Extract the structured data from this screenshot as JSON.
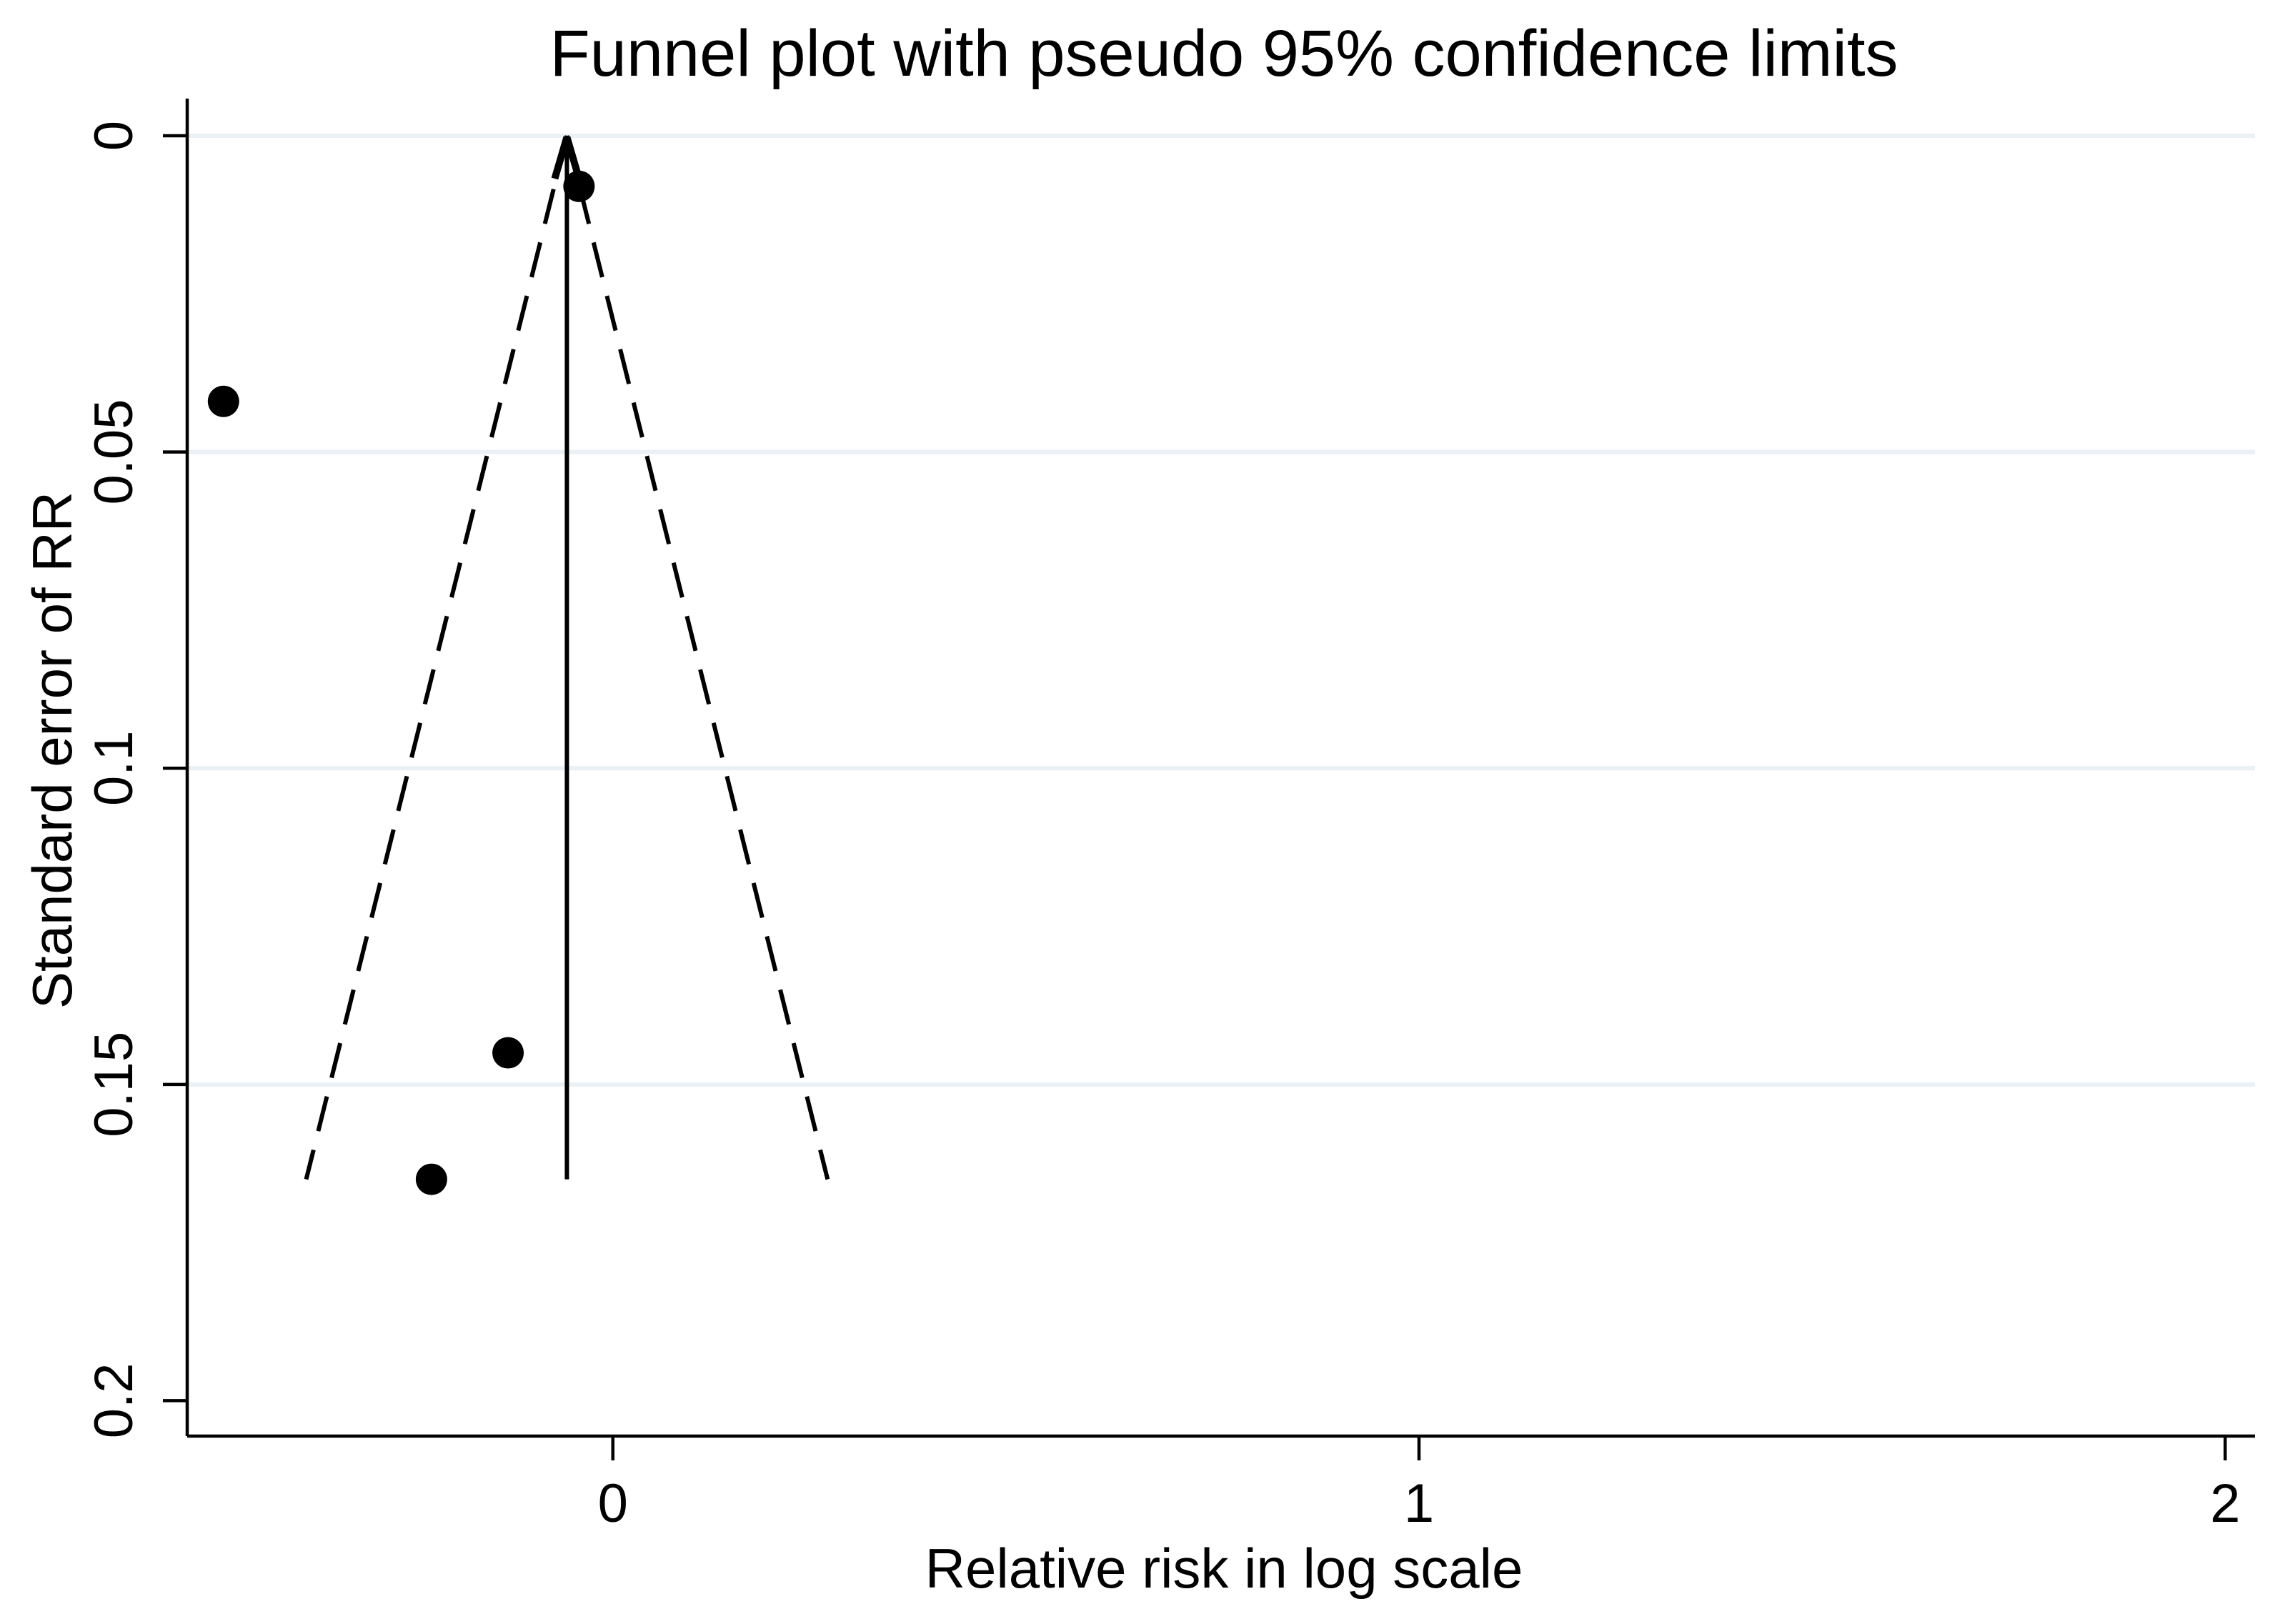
{
  "figure": {
    "background": "#ffffff"
  },
  "chart_data": {
    "type": "scatter",
    "subtype": "funnel-plot",
    "title": "Funnel plot with pseudo 95% confidence limits",
    "xlabel": "Relative risk in log scale",
    "ylabel": "Standard error of RR",
    "x_axis": {
      "min": -0.528,
      "max": 2.037,
      "ticks": [
        0,
        1,
        2
      ],
      "tick_labels": [
        "0",
        "1",
        "2"
      ]
    },
    "y_axis": {
      "min": 0,
      "max": 0.2056,
      "inverted": true,
      "ticks": [
        0,
        0.05,
        0.1,
        0.15,
        0.2
      ],
      "tick_labels": [
        "0",
        "0.05",
        "0.1",
        "0.15",
        "0.2"
      ],
      "gridline_ticks": [
        0,
        0.05,
        0.1,
        0.15
      ]
    },
    "grid": true,
    "legend": "none",
    "points": [
      {
        "x": -0.042,
        "se": 0.008
      },
      {
        "x": -0.483,
        "se": 0.042
      },
      {
        "x": -0.13,
        "se": 0.145
      },
      {
        "x": -0.225,
        "se": 0.165
      }
    ],
    "pooled_estimate": -0.057,
    "ci": {
      "z": 1.96,
      "se_max": 0.165,
      "style": "dashed"
    },
    "colors": {
      "marker": "#000000",
      "line": "#000000",
      "grid": "#eaf1f4",
      "text": "#000000",
      "background": "#ffffff"
    }
  }
}
